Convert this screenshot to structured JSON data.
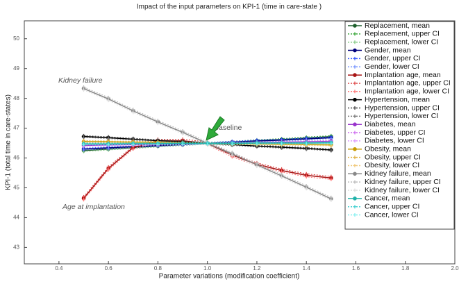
{
  "chart_data": {
    "type": "line",
    "title": "Impact of the input parameters on KPI-1 (time in care-state )",
    "xlabel": "Parameter variations (modification coefficient)",
    "ylabel": "KPI-1 (total time in care-states)",
    "annotations": [
      "Kidney failure",
      "Age at implantation",
      "Baseline"
    ],
    "x": [
      0.5,
      0.6,
      0.7,
      0.8,
      0.9,
      1,
      1.1,
      1.2,
      1.3,
      1.4,
      1.5
    ],
    "xlim": [
      0.26,
      2.0
    ],
    "xticks": [
      0.4,
      0.6,
      0.8,
      {
        "value": 1,
        "label": "1.0"
      },
      1.2,
      1.4,
      1.6,
      1.8,
      {
        "value": 2,
        "label": "2.0"
      }
    ],
    "ylim": [
      42.45,
      50.6
    ],
    "yticks": [
      43,
      44,
      45,
      46,
      47,
      48,
      49,
      50
    ],
    "grid": false,
    "legend": "upper right",
    "series": [
      {
        "name": "Replacement, mean",
        "color": "#1d5e2b",
        "values": [
          46.25,
          46.3,
          46.35,
          46.4,
          46.45,
          46.49,
          46.53,
          46.58,
          46.62,
          46.67,
          46.72
        ]
      },
      {
        "name": "Replacement, upper CI",
        "color": "#3aa63a",
        "values": [
          46.28,
          46.33,
          46.38,
          46.43,
          46.48,
          46.52,
          46.56,
          46.61,
          46.65,
          46.7,
          46.75
        ]
      },
      {
        "name": "Replacement, lower CI",
        "color": "#80c880",
        "values": [
          46.22,
          46.27,
          46.32,
          46.37,
          46.42,
          46.46,
          46.5,
          46.55,
          46.59,
          46.64,
          46.69
        ]
      },
      {
        "name": "Gender, mean",
        "color": "#00007a",
        "values": [
          46.3,
          46.34,
          46.38,
          46.42,
          46.46,
          46.49,
          46.53,
          46.57,
          46.6,
          46.64,
          46.68
        ]
      },
      {
        "name": "Gender, upper CI",
        "color": "#3355ff",
        "values": [
          46.33,
          46.37,
          46.41,
          46.45,
          46.49,
          46.52,
          46.56,
          46.6,
          46.63,
          46.67,
          46.71
        ]
      },
      {
        "name": "Gender, lower CI",
        "color": "#7090ff",
        "values": [
          46.27,
          46.31,
          46.35,
          46.39,
          46.43,
          46.46,
          46.5,
          46.54,
          46.57,
          46.61,
          46.65
        ]
      },
      {
        "name": "Implantation age, mean",
        "color": "#a81414",
        "values": [
          44.65,
          45.65,
          46.35,
          46.58,
          46.58,
          46.49,
          46.09,
          45.79,
          45.58,
          45.42,
          45.33
        ]
      },
      {
        "name": "Implantation age, upper CI",
        "color": "#dd4444",
        "values": [
          44.7,
          45.7,
          46.4,
          46.63,
          46.63,
          46.54,
          46.14,
          45.84,
          45.63,
          45.47,
          45.38
        ]
      },
      {
        "name": "Implantation age, lower CI",
        "color": "#ff7777",
        "values": [
          44.6,
          45.6,
          46.3,
          46.53,
          46.53,
          46.44,
          46.04,
          45.74,
          45.53,
          45.37,
          45.28
        ]
      },
      {
        "name": "Hypertension, mean",
        "color": "#000000",
        "values": [
          46.72,
          46.68,
          46.63,
          46.58,
          46.54,
          46.49,
          46.45,
          46.4,
          46.36,
          46.32,
          46.27
        ]
      },
      {
        "name": "Hypertension, upper CI",
        "color": "#444444",
        "values": [
          46.75,
          46.71,
          46.66,
          46.61,
          46.57,
          46.52,
          46.48,
          46.43,
          46.39,
          46.35,
          46.3
        ]
      },
      {
        "name": "Hypertension, lower CI",
        "color": "#777777",
        "values": [
          46.69,
          46.65,
          46.6,
          46.55,
          46.51,
          46.46,
          46.42,
          46.37,
          46.33,
          46.29,
          46.24
        ]
      },
      {
        "name": "Diabetes, mean",
        "color": "#9933cc",
        "values": [
          46.42,
          46.44,
          46.45,
          46.46,
          46.48,
          46.49,
          46.5,
          46.51,
          46.53,
          46.54,
          46.56
        ]
      },
      {
        "name": "Diabetes, upper CI",
        "color": "#cc66ee",
        "values": [
          46.45,
          46.47,
          46.48,
          46.49,
          46.51,
          46.52,
          46.53,
          46.54,
          46.56,
          46.57,
          46.59
        ]
      },
      {
        "name": "Diabetes, lower CI",
        "color": "#dd99ff",
        "values": [
          46.39,
          46.41,
          46.42,
          46.43,
          46.45,
          46.46,
          46.47,
          46.48,
          46.5,
          46.51,
          46.53
        ]
      },
      {
        "name": "Obesity, mean",
        "color": "#c89a00",
        "values": [
          46.55,
          46.54,
          46.53,
          46.52,
          46.5,
          46.49,
          46.48,
          46.47,
          46.46,
          46.45,
          46.44
        ]
      },
      {
        "name": "Obesity, upper CI",
        "color": "#e0b040",
        "values": [
          46.58,
          46.57,
          46.56,
          46.55,
          46.53,
          46.52,
          46.51,
          46.5,
          46.49,
          46.48,
          46.47
        ]
      },
      {
        "name": "Obesity, lower CI",
        "color": "#f0c878",
        "values": [
          46.52,
          46.51,
          46.5,
          46.49,
          46.47,
          46.46,
          46.45,
          46.44,
          46.43,
          46.42,
          46.41
        ]
      },
      {
        "name": "Kidney failure, mean",
        "color": "#888888",
        "values": [
          48.33,
          47.98,
          47.58,
          47.21,
          46.86,
          46.49,
          46.14,
          45.77,
          45.4,
          45.02,
          44.63
        ]
      },
      {
        "name": "Kidney failure, upper CI",
        "color": "#bbbbbb",
        "values": [
          48.38,
          48.03,
          47.63,
          47.26,
          46.91,
          46.54,
          46.19,
          45.82,
          45.45,
          45.07,
          44.68
        ]
      },
      {
        "name": "Kidney failure, lower CI",
        "color": "#dddddd",
        "values": [
          48.28,
          47.93,
          47.53,
          47.16,
          46.81,
          46.44,
          46.09,
          45.72,
          45.35,
          44.97,
          44.58
        ]
      },
      {
        "name": "Cancer, mean",
        "color": "#20b2aa",
        "values": [
          46.47,
          46.47,
          46.48,
          46.48,
          46.49,
          46.49,
          46.49,
          46.5,
          46.5,
          46.5,
          46.51
        ]
      },
      {
        "name": "Cancer, upper CI",
        "color": "#40d0d0",
        "values": [
          46.5,
          46.5,
          46.51,
          46.51,
          46.52,
          46.52,
          46.52,
          46.53,
          46.53,
          46.53,
          46.54
        ]
      },
      {
        "name": "Cancer, lower CI",
        "color": "#80f0f0",
        "values": [
          46.44,
          46.44,
          46.45,
          46.45,
          46.46,
          46.46,
          46.46,
          46.47,
          46.47,
          46.47,
          46.48
        ]
      }
    ]
  }
}
